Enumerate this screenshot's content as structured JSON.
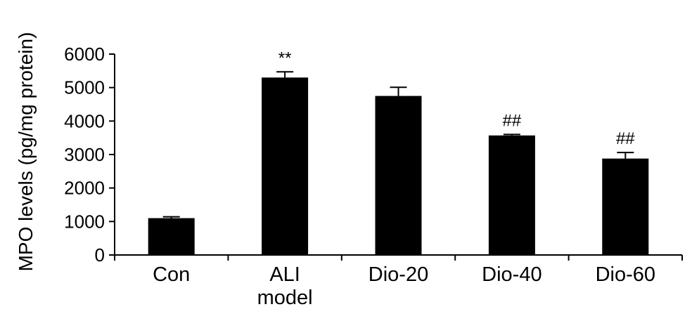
{
  "chart_data": {
    "type": "bar",
    "title": "",
    "xlabel": "",
    "ylabel": "MPO levels (pg/mg protein)",
    "ylim": [
      0,
      6000
    ],
    "yticks": [
      0,
      1000,
      2000,
      3000,
      4000,
      5000,
      6000
    ],
    "grid": false,
    "legend": "none",
    "bar_color": "#000000",
    "categories": [
      [
        "Con"
      ],
      [
        "ALI",
        "model"
      ],
      [
        "Dio-20"
      ],
      [
        "Dio-40"
      ],
      [
        "Dio-60"
      ]
    ],
    "values": [
      1100,
      5300,
      4750,
      3570,
      2880
    ],
    "errors": [
      40,
      170,
      260,
      30,
      180
    ],
    "annotations": [
      "",
      "**",
      "",
      "##",
      "##"
    ]
  }
}
